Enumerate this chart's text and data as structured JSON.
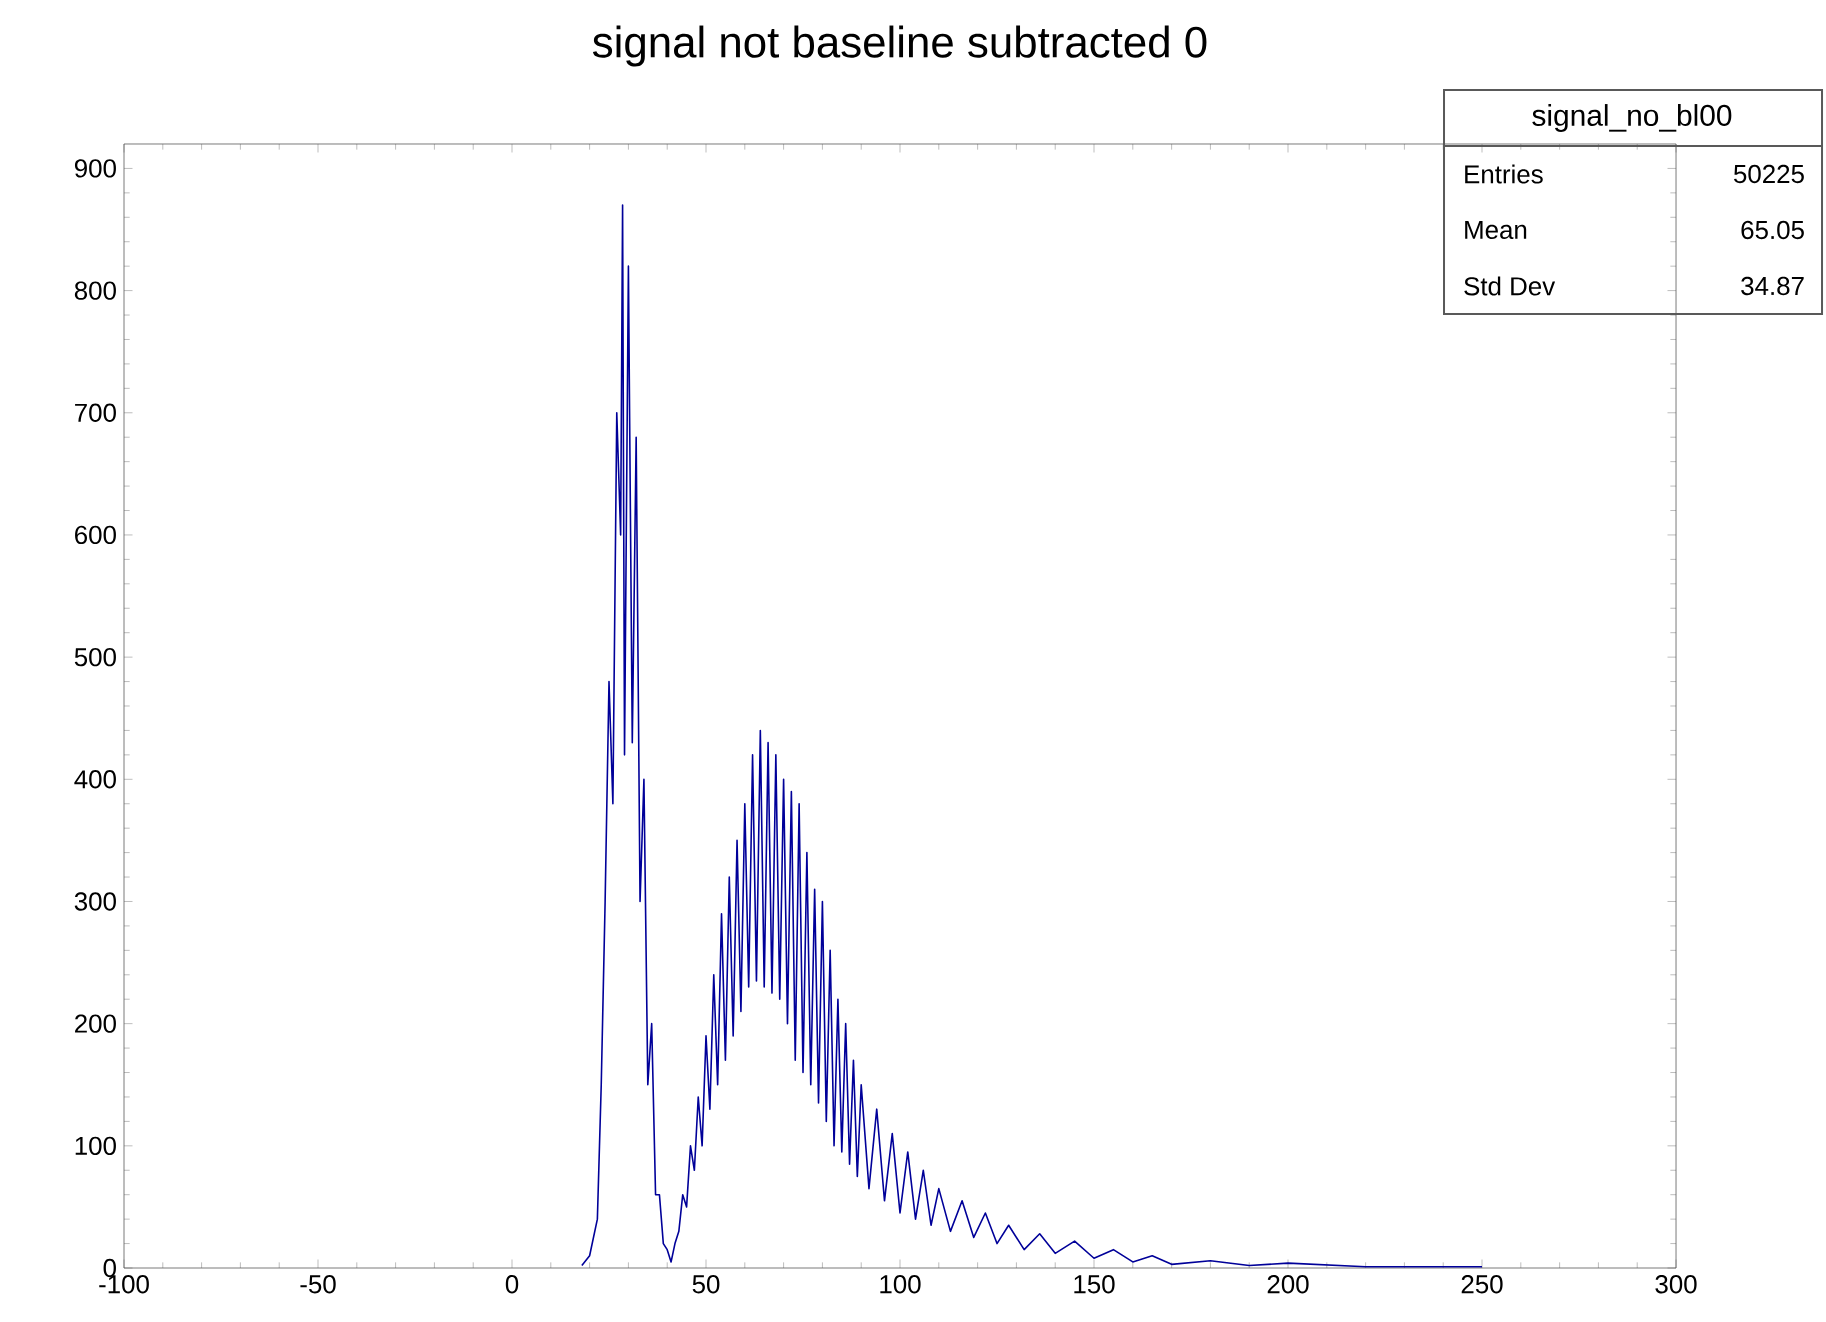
{
  "chart_data": {
    "type": "line",
    "title": "signal not baseline subtracted 0",
    "series": [
      {
        "color": "#000099",
        "x": [
          18,
          20,
          22,
          23,
          24,
          25,
          26,
          27,
          28,
          28.5,
          29,
          30,
          31,
          32,
          33,
          34,
          35,
          36,
          37,
          38,
          39,
          40,
          41,
          42,
          43,
          44,
          45,
          46,
          47,
          48,
          49,
          50,
          51,
          52,
          53,
          54,
          55,
          56,
          57,
          58,
          59,
          60,
          61,
          62,
          63,
          64,
          65,
          66,
          67,
          68,
          69,
          70,
          71,
          72,
          73,
          74,
          75,
          76,
          77,
          78,
          79,
          80,
          81,
          82,
          83,
          84,
          85,
          86,
          87,
          88,
          89,
          90,
          92,
          94,
          96,
          98,
          100,
          102,
          104,
          106,
          108,
          110,
          113,
          116,
          119,
          122,
          125,
          128,
          132,
          136,
          140,
          145,
          150,
          155,
          160,
          165,
          170,
          180,
          190,
          200,
          220,
          250
        ],
        "values": [
          2,
          10,
          40,
          150,
          300,
          480,
          380,
          700,
          600,
          870,
          420,
          820,
          430,
          680,
          300,
          400,
          150,
          200,
          60,
          60,
          20,
          15,
          5,
          20,
          30,
          60,
          50,
          100,
          80,
          140,
          100,
          190,
          130,
          240,
          150,
          290,
          170,
          320,
          190,
          350,
          210,
          380,
          230,
          420,
          235,
          440,
          230,
          430,
          225,
          420,
          220,
          400,
          200,
          390,
          170,
          380,
          160,
          340,
          150,
          310,
          135,
          300,
          120,
          260,
          100,
          220,
          95,
          200,
          85,
          170,
          75,
          150,
          65,
          130,
          55,
          110,
          45,
          95,
          40,
          80,
          35,
          65,
          30,
          55,
          25,
          45,
          20,
          35,
          15,
          28,
          12,
          22,
          8,
          15,
          5,
          10,
          3,
          6,
          2,
          4,
          1,
          1
        ]
      }
    ],
    "xlim": [
      -100,
      300
    ],
    "xticks": [
      -100,
      -50,
      0,
      50,
      100,
      150,
      200,
      250,
      300
    ],
    "ylim": [
      0,
      920
    ],
    "yticks": [
      0,
      100,
      200,
      300,
      400,
      500,
      600,
      700,
      800,
      900
    ],
    "annotations": [
      "signal_no_bl00",
      "Entries",
      "50225",
      "Mean",
      "65.05",
      "Std Dev",
      "34.87"
    ]
  }
}
